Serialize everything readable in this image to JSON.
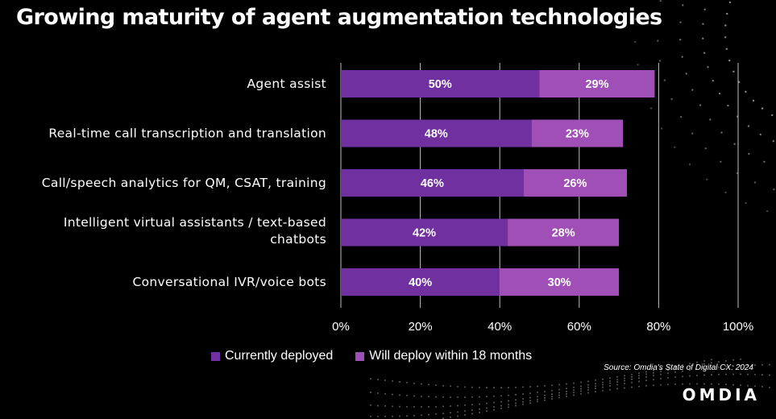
{
  "colors": {
    "currently_deployed": "#7030a0",
    "will_deploy": "#a04fb6",
    "gridline": "#bfbfbf",
    "background": "#000000"
  },
  "source": "Source: Omdia's State of Digital CX: 2024",
  "logo": "OMDIA",
  "chart_data": {
    "type": "bar",
    "orientation": "horizontal",
    "stacked": true,
    "title": "Growing maturity of agent augmentation technologies",
    "categories": [
      [
        "Agent assist"
      ],
      [
        "Real-time call transcription and translation"
      ],
      [
        "Call/speech analytics for QM, CSAT, training"
      ],
      [
        "Intelligent virtual assistants / text-based",
        "chatbots"
      ],
      [
        "Conversational IVR/voice bots"
      ]
    ],
    "series": [
      {
        "name": "Currently deployed",
        "values": [
          50,
          48,
          46,
          42,
          40
        ],
        "labels": [
          "50%",
          "48%",
          "46%",
          "42%",
          "40%"
        ]
      },
      {
        "name": "Will deploy within 18 months",
        "values": [
          29,
          23,
          26,
          28,
          30
        ],
        "labels": [
          "29%",
          "23%",
          "26%",
          "28%",
          "30%"
        ]
      }
    ],
    "xlim": [
      0,
      100
    ],
    "xticks": [
      0,
      20,
      40,
      60,
      80,
      100
    ],
    "xtick_labels": [
      "0%",
      "20%",
      "40%",
      "60%",
      "80%",
      "100%"
    ],
    "grid": true,
    "legend": "bottom",
    "xlabel": "",
    "ylabel": ""
  }
}
